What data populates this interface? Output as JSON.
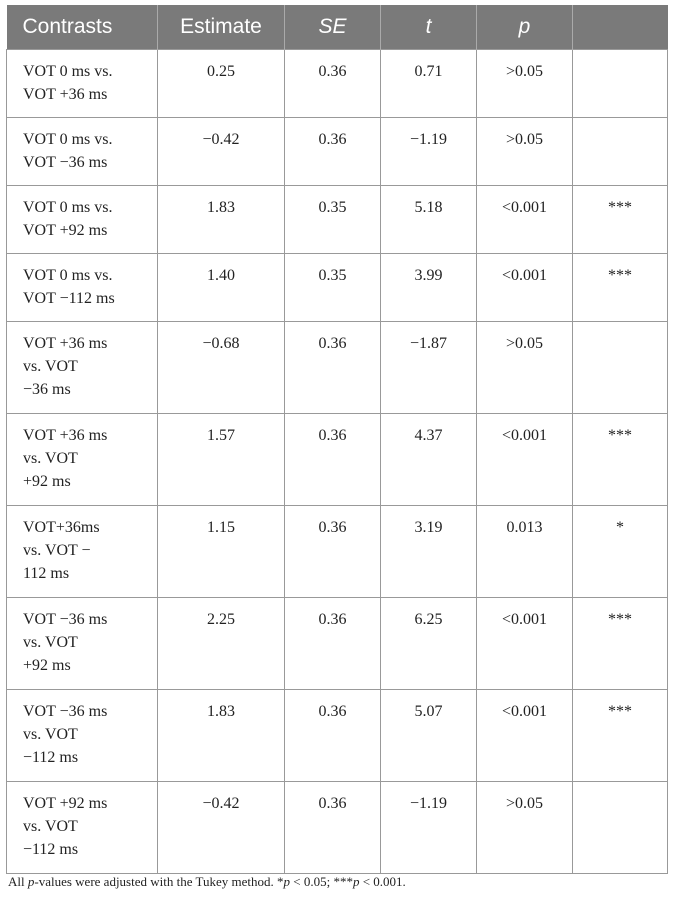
{
  "table": {
    "header": [
      "Contrasts",
      "Estimate",
      "SE",
      "t",
      "p",
      null
    ],
    "rows": [
      [
        [
          "VOT 0 ms vs.",
          "VOT +36 ms"
        ],
        "0.25",
        "0.36",
        "0.71",
        ">0.05",
        null
      ],
      [
        [
          "VOT 0 ms vs.",
          "VOT −36 ms"
        ],
        "−0.42",
        "0.36",
        "−1.19",
        ">0.05",
        null
      ],
      [
        [
          "VOT 0 ms vs.",
          "VOT +92 ms"
        ],
        "1.83",
        "0.35",
        "5.18",
        "<0.001",
        "***"
      ],
      [
        [
          "VOT 0 ms vs.",
          "VOT −112 ms"
        ],
        "1.40",
        "0.35",
        "3.99",
        "<0.001",
        "***"
      ],
      [
        [
          "VOT +36 ms",
          "vs. VOT",
          "−36 ms"
        ],
        "−0.68",
        "0.36",
        "−1.87",
        ">0.05",
        null
      ],
      [
        [
          "VOT +36 ms",
          "vs. VOT",
          "+92 ms"
        ],
        "1.57",
        "0.36",
        "4.37",
        "<0.001",
        "***"
      ],
      [
        [
          "VOT+36ms",
          "vs. VOT −",
          "112 ms"
        ],
        "1.15",
        "0.36",
        "3.19",
        "0.013",
        "*"
      ],
      [
        [
          "VOT −36 ms",
          "vs. VOT",
          "+92 ms"
        ],
        "2.25",
        "0.36",
        "6.25",
        "<0.001",
        "***"
      ],
      [
        [
          "VOT −36 ms",
          "vs. VOT",
          "−112 ms"
        ],
        "1.83",
        "0.36",
        "5.07",
        "<0.001",
        "***"
      ],
      [
        [
          "VOT +92 ms",
          "vs. VOT",
          "−112 ms"
        ],
        "−0.42",
        "0.36",
        "−1.19",
        ">0.05",
        null
      ]
    ]
  },
  "footnote": [
    "All ",
    "p",
    "-values were adjusted with the Tukey method. *",
    "p",
    " < 0.05; ***",
    "p",
    " < 0.001."
  ]
}
